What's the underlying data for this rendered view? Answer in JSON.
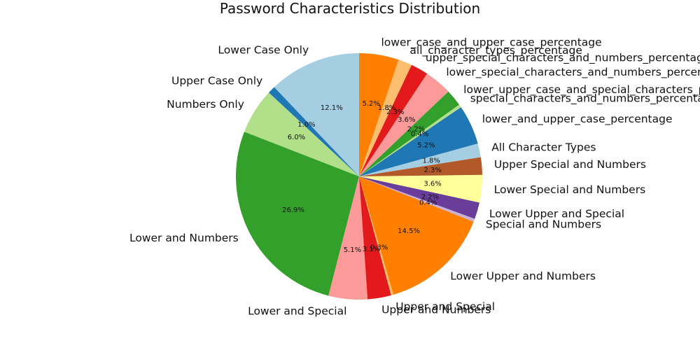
{
  "chart_data": {
    "type": "pie",
    "title": "Password Characteristics Distribution",
    "start_angle_deg": 90,
    "direction": "counterclockwise",
    "slices": [
      {
        "label": "Lower Case Only",
        "value": 12.1,
        "pct_label": "12.1%",
        "color": "#a6cee3"
      },
      {
        "label": "Upper Case Only",
        "value": 1.0,
        "pct_label": "1.0%",
        "color": "#1f78b4"
      },
      {
        "label": "Numbers Only",
        "value": 6.0,
        "pct_label": "6.0%",
        "color": "#b2df8a"
      },
      {
        "label": "Lower and Numbers",
        "value": 26.9,
        "pct_label": "26.9%",
        "color": "#33a02c"
      },
      {
        "label": "Lower and Special",
        "value": 5.1,
        "pct_label": "5.1%",
        "color": "#fb9a99"
      },
      {
        "label": "Upper and Numbers",
        "value": 3.1,
        "pct_label": "3.1%",
        "color": "#e31a1c"
      },
      {
        "label": "Upper and Special",
        "value": 0.3,
        "pct_label": "0.3%",
        "color": "#fdbf6f"
      },
      {
        "label": "Lower Upper and Numbers",
        "value": 14.5,
        "pct_label": "14.5%",
        "color": "#ff7f00"
      },
      {
        "label": "Special and Numbers",
        "value": 0.4,
        "pct_label": "0.4%",
        "color": "#cab2d6"
      },
      {
        "label": "Lower Upper and Special",
        "value": 2.2,
        "pct_label": "2.2%",
        "color": "#6a3d9a"
      },
      {
        "label": "Lower Special and Numbers",
        "value": 3.6,
        "pct_label": "3.6%",
        "color": "#ffff99"
      },
      {
        "label": "Upper Special and Numbers",
        "value": 2.3,
        "pct_label": "2.3%",
        "color": "#b15928"
      },
      {
        "label": "All Character Types",
        "value": 1.8,
        "pct_label": "1.8%",
        "color": "#a6cee3"
      },
      {
        "label": "lower_and_upper_case_percentage",
        "value": 5.2,
        "pct_label": "5.2%",
        "color": "#1f78b4"
      },
      {
        "label": "special_characters_and_numbers_percentage",
        "value": 0.4,
        "pct_label": "0.4%",
        "color": "#b2df8a"
      },
      {
        "label": "lower_upper_case_and_special_characters_percentage",
        "value": 2.2,
        "pct_label": "2.2%",
        "color": "#33a02c"
      },
      {
        "label": "lower_special_characters_and_numbers_percentage",
        "value": 3.6,
        "pct_label": "3.6%",
        "color": "#fb9a99"
      },
      {
        "label": "upper_special_characters_and_numbers_percentage",
        "value": 2.3,
        "pct_label": "2.3%",
        "color": "#e31a1c"
      },
      {
        "label": "all_character_types_percentage",
        "value": 1.8,
        "pct_label": "1.8%",
        "color": "#fdbf6f"
      },
      {
        "label": "lower_case_and_upper_case_percentage",
        "value": 5.2,
        "pct_label": "5.2%",
        "color": "#ff7f00"
      }
    ]
  }
}
